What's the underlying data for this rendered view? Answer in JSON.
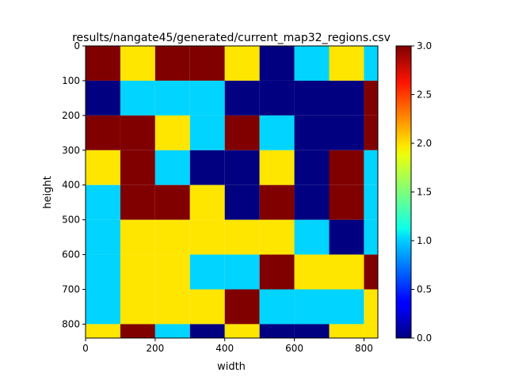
{
  "chart_data": {
    "type": "heatmap",
    "title": "results/nangate45/generated/current_map32_regions.csv",
    "xlabel": "width",
    "ylabel": "height",
    "x_edges": [
      0,
      100,
      200,
      300,
      400,
      500,
      600,
      700,
      800,
      840
    ],
    "y_edges": [
      0,
      100,
      200,
      300,
      400,
      500,
      600,
      700,
      800,
      840
    ],
    "xlim": [
      0,
      840
    ],
    "ylim": [
      840,
      0
    ],
    "x_ticks": [
      0,
      200,
      400,
      600,
      800
    ],
    "y_ticks": [
      0,
      100,
      200,
      300,
      400,
      500,
      600,
      700,
      800
    ],
    "values": [
      [
        3,
        2,
        3,
        3,
        2,
        0,
        1,
        2,
        1
      ],
      [
        0,
        1,
        1,
        1,
        0,
        0,
        0,
        0,
        3
      ],
      [
        3,
        3,
        2,
        1,
        3,
        1,
        0,
        0,
        3
      ],
      [
        2,
        3,
        1,
        0,
        0,
        2,
        0,
        3,
        1
      ],
      [
        1,
        3,
        3,
        2,
        0,
        3,
        0,
        3,
        1
      ],
      [
        1,
        2,
        2,
        2,
        2,
        2,
        1,
        0,
        1
      ],
      [
        1,
        2,
        2,
        1,
        1,
        3,
        2,
        2,
        3
      ],
      [
        1,
        2,
        2,
        2,
        3,
        1,
        1,
        1,
        2
      ],
      [
        2,
        3,
        1,
        0,
        2,
        0,
        0,
        2,
        2
      ]
    ],
    "colormap": "jet",
    "color_map_samples": {
      "0": "#000080",
      "1": "#00d4ff",
      "2": "#ffe600",
      "3": "#800000"
    },
    "colorbar": {
      "range": [
        0,
        3
      ],
      "ticks": [
        "0.0",
        "0.5",
        "1.0",
        "1.5",
        "2.0",
        "2.5",
        "3.0"
      ]
    },
    "grid": false
  }
}
